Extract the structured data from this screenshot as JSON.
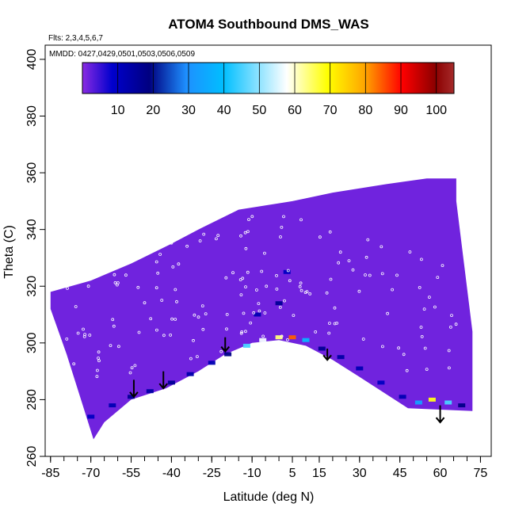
{
  "chart_data": {
    "type": "heatmap",
    "title": "ATOM4 Southbound DMS_WAS",
    "subtitle_flights": "Flts: 2,3,4,5,6,7",
    "subtitle_dates": "MMDD: 0427,0429,0501,0503,0506,0509",
    "xlabel": "Latitude (deg N)",
    "ylabel": "Theta (C)",
    "xlim": [
      -87,
      79
    ],
    "ylim": [
      260,
      405
    ],
    "x_ticks": [
      -85,
      -70,
      -55,
      -40,
      -25,
      -10,
      5,
      15,
      30,
      45,
      60,
      75
    ],
    "y_ticks": [
      260,
      280,
      300,
      320,
      340,
      360,
      380,
      400
    ],
    "x_tick_labels": [
      "-85",
      "-70",
      "-55",
      "-40",
      "-25",
      "-10",
      "5",
      "15",
      "30",
      "45",
      "60",
      "75"
    ],
    "y_tick_labels": [
      "260",
      "280",
      "300",
      "320",
      "340",
      "360",
      "380",
      "400"
    ],
    "colorbar": {
      "min": 0,
      "max": 105,
      "tick_values": [
        10,
        20,
        30,
        40,
        50,
        60,
        70,
        80,
        90,
        100
      ],
      "tick_labels": [
        "10",
        "20",
        "30",
        "40",
        "50",
        "60",
        "70",
        "80",
        "90",
        "100"
      ],
      "colors": [
        "#8a2be2",
        "#0000cd",
        "#000080",
        "#1e90ff",
        "#00bfff",
        "#ffffff",
        "#ffff00",
        "#ffa500",
        "#ff0000",
        "#8b0000",
        "#a52a2a"
      ]
    },
    "background_value": 2,
    "domain_outline": [
      [
        -85,
        318
      ],
      [
        -70,
        322
      ],
      [
        -55,
        328
      ],
      [
        -40,
        335
      ],
      [
        -30,
        340
      ],
      [
        -15,
        347
      ],
      [
        5,
        350
      ],
      [
        20,
        353
      ],
      [
        40,
        356
      ],
      [
        55,
        358
      ],
      [
        66,
        358
      ],
      [
        66,
        350
      ],
      [
        72,
        304
      ],
      [
        72,
        276
      ],
      [
        48,
        277
      ],
      [
        30,
        288
      ],
      [
        20,
        294
      ],
      [
        10,
        299
      ],
      [
        0,
        301
      ],
      [
        -10,
        300
      ],
      [
        -20,
        296
      ],
      [
        -30,
        290
      ],
      [
        -42,
        284
      ],
      [
        -55,
        280
      ],
      [
        -65,
        272
      ],
      [
        -69,
        266
      ],
      [
        -73,
        278
      ],
      [
        -79,
        296
      ],
      [
        -85,
        312
      ]
    ],
    "cells": [
      {
        "x": -70,
        "y": 274,
        "v": 12
      },
      {
        "x": -62,
        "y": 278,
        "v": 14
      },
      {
        "x": -55,
        "y": 281,
        "v": 18
      },
      {
        "x": -48,
        "y": 283,
        "v": 16
      },
      {
        "x": -40,
        "y": 286,
        "v": 18
      },
      {
        "x": -33,
        "y": 289,
        "v": 15
      },
      {
        "x": -25,
        "y": 293,
        "v": 14
      },
      {
        "x": -19,
        "y": 296,
        "v": 20
      },
      {
        "x": -12,
        "y": 299,
        "v": 45
      },
      {
        "x": -6,
        "y": 301,
        "v": 52
      },
      {
        "x": 0,
        "y": 302,
        "v": 58
      },
      {
        "x": 5,
        "y": 302,
        "v": 78
      },
      {
        "x": 10,
        "y": 301,
        "v": 40
      },
      {
        "x": 16,
        "y": 298,
        "v": 18
      },
      {
        "x": 23,
        "y": 295,
        "v": 16
      },
      {
        "x": 30,
        "y": 291,
        "v": 14
      },
      {
        "x": 38,
        "y": 286,
        "v": 12
      },
      {
        "x": 46,
        "y": 281,
        "v": 14
      },
      {
        "x": 52,
        "y": 279,
        "v": 35
      },
      {
        "x": 57,
        "y": 280,
        "v": 62
      },
      {
        "x": 63,
        "y": 279,
        "v": 45
      },
      {
        "x": 68,
        "y": 278,
        "v": 20
      },
      {
        "x": -8,
        "y": 310,
        "v": 14
      },
      {
        "x": 0,
        "y": 314,
        "v": 18
      },
      {
        "x": 3,
        "y": 325,
        "v": 12
      }
    ],
    "arrows": [
      {
        "x": -54,
        "y_top": 287,
        "y_bottom": 281
      },
      {
        "x": -43,
        "y_top": 290,
        "y_bottom": 284
      },
      {
        "x": -20,
        "y_top": 302,
        "y_bottom": 297
      },
      {
        "x": 18,
        "y_top": 298,
        "y_bottom": 294
      },
      {
        "x": 60,
        "y_top": 278,
        "y_bottom": 272
      }
    ]
  }
}
